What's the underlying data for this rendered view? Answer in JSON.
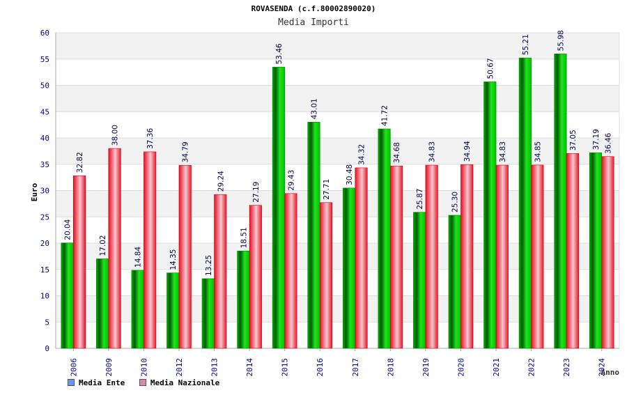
{
  "chart_data": {
    "type": "bar",
    "title": "ROVASENDA (c.f.80002890020)",
    "subtitle": "Media Importi",
    "xlabel": "Anno",
    "ylabel": "Euro",
    "ylim": [
      0,
      60
    ],
    "yticks": [
      "0",
      "5",
      "10",
      "15",
      "20",
      "25",
      "30",
      "35",
      "40",
      "45",
      "50",
      "55",
      "60"
    ],
    "grid": true,
    "legend_position": "bottom-left",
    "categories": [
      "2006",
      "2009",
      "2010",
      "2012",
      "2013",
      "2014",
      "2015",
      "2016",
      "2017",
      "2018",
      "2019",
      "2020",
      "2021",
      "2022",
      "2023",
      "2024"
    ],
    "series": [
      {
        "name": "Media Ente",
        "legend_color": "#6699ee",
        "bar_color": "#00cc00",
        "values": [
          20.04,
          17.02,
          14.84,
          14.35,
          13.25,
          18.51,
          53.46,
          43.01,
          30.48,
          41.72,
          25.87,
          25.3,
          50.67,
          55.21,
          55.98,
          37.19
        ],
        "labels": [
          "20.04",
          "17.02",
          "14.84",
          "14.35",
          "13.25",
          "18.51",
          "53.46",
          "43.01",
          "30.48",
          "41.72",
          "25.87",
          "25.30",
          "50.67",
          "55.21",
          "55.98",
          "37.19"
        ]
      },
      {
        "name": "Media Nazionale",
        "legend_color": "#dd88aa",
        "bar_color": "#ee2233",
        "values": [
          32.82,
          38.0,
          37.36,
          34.79,
          29.24,
          27.19,
          29.43,
          27.71,
          34.32,
          34.68,
          34.83,
          34.94,
          34.83,
          34.85,
          37.05,
          36.46
        ],
        "labels": [
          "32.82",
          "38.00",
          "37.36",
          "34.79",
          "29.24",
          "27.19",
          "29.43",
          "27.71",
          "34.32",
          "34.68",
          "34.83",
          "34.94",
          "34.83",
          "34.85",
          "37.05",
          "36.46"
        ]
      }
    ]
  }
}
